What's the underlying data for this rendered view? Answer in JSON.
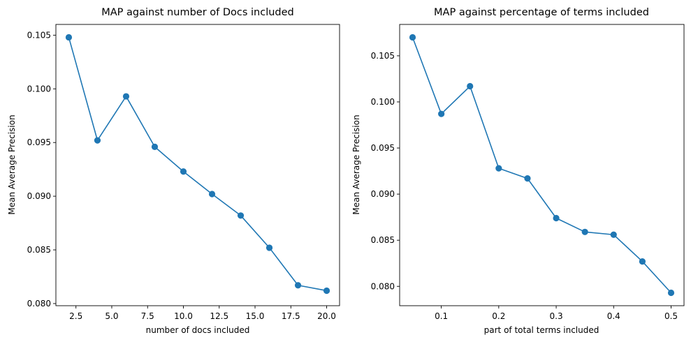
{
  "chart_data": [
    {
      "type": "line",
      "title": "MAP against number of Docs included",
      "xlabel": "number of docs included",
      "ylabel": "Mean Average Precision",
      "xlim": [
        1.1,
        20.9
      ],
      "ylim": [
        0.0798,
        0.106
      ],
      "xticks": [
        2.5,
        5.0,
        7.5,
        10.0,
        12.5,
        15.0,
        17.5,
        20.0
      ],
      "xtick_labels": [
        "2.5",
        "5.0",
        "7.5",
        "10.0",
        "12.5",
        "15.0",
        "17.5",
        "20.0"
      ],
      "yticks": [
        0.08,
        0.085,
        0.09,
        0.095,
        0.1,
        0.105
      ],
      "ytick_labels": [
        "0.080",
        "0.085",
        "0.090",
        "0.095",
        "0.100",
        "0.105"
      ],
      "grid": false,
      "color": "#1f77b4",
      "x": [
        2,
        4,
        6,
        8,
        10,
        12,
        14,
        16,
        18,
        20
      ],
      "y": [
        0.1048,
        0.0952,
        0.0993,
        0.0946,
        0.0923,
        0.0902,
        0.0882,
        0.0852,
        0.0817,
        0.0812
      ]
    },
    {
      "type": "line",
      "title": "MAP against percentage of terms included",
      "xlabel": "part of total terms included",
      "ylabel": "Mean Average Precision",
      "xlim": [
        0.0275,
        0.5225
      ],
      "ylim": [
        0.0779,
        0.1084
      ],
      "xticks": [
        0.1,
        0.2,
        0.3,
        0.4,
        0.5
      ],
      "xtick_labels": [
        "0.1",
        "0.2",
        "0.3",
        "0.4",
        "0.5"
      ],
      "yticks": [
        0.08,
        0.085,
        0.09,
        0.095,
        0.1,
        0.105
      ],
      "ytick_labels": [
        "0.080",
        "0.085",
        "0.090",
        "0.095",
        "0.100",
        "0.105"
      ],
      "grid": false,
      "color": "#1f77b4",
      "x": [
        0.05,
        0.1,
        0.15,
        0.2,
        0.25,
        0.3,
        0.35,
        0.4,
        0.45,
        0.5
      ],
      "y": [
        0.107,
        0.0987,
        0.1017,
        0.0928,
        0.0917,
        0.0874,
        0.0859,
        0.0856,
        0.0827,
        0.0793
      ]
    }
  ]
}
